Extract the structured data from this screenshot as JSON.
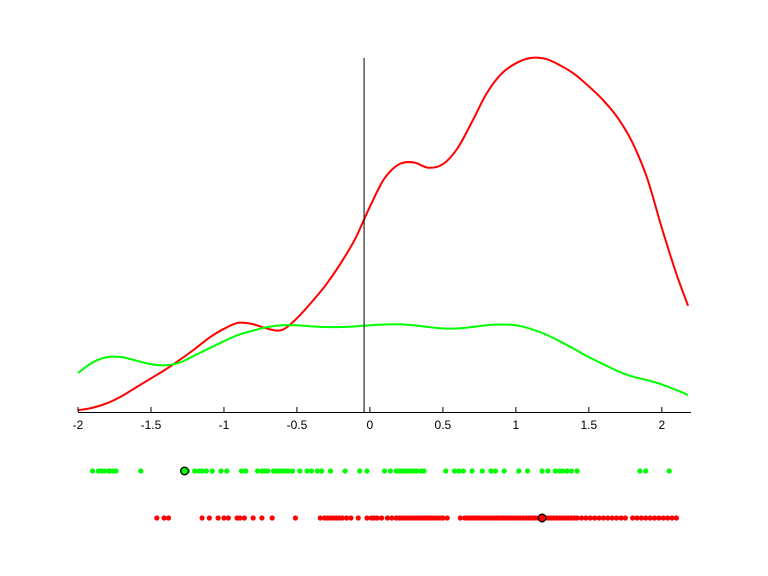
{
  "chart_data": {
    "type": "line",
    "title": "",
    "xlabel": "",
    "ylabel": "",
    "xlim": [
      -2,
      2.2
    ],
    "ylim": [
      0,
      1
    ],
    "xticks": [
      "-2",
      "-1.5",
      "-1",
      "-0.5",
      "0",
      "0.5",
      "1",
      "1.5",
      "2"
    ],
    "grid": false,
    "legend": "none",
    "vertical_line_x": -0.04,
    "series": [
      {
        "color": "#ff0000",
        "x": [
          -2.0,
          -1.9,
          -1.8,
          -1.7,
          -1.6,
          -1.5,
          -1.4,
          -1.3,
          -1.2,
          -1.1,
          -1.0,
          -0.9,
          -0.8,
          -0.7,
          -0.6,
          -0.5,
          -0.4,
          -0.3,
          -0.2,
          -0.1,
          0.0,
          0.1,
          0.2,
          0.3,
          0.4,
          0.5,
          0.6,
          0.7,
          0.8,
          0.9,
          1.0,
          1.1,
          1.2,
          1.3,
          1.4,
          1.5,
          1.6,
          1.7,
          1.8,
          1.9,
          2.0,
          2.1,
          2.18
        ],
        "y": [
          0.005,
          0.012,
          0.025,
          0.045,
          0.07,
          0.095,
          0.12,
          0.148,
          0.178,
          0.21,
          0.235,
          0.252,
          0.248,
          0.235,
          0.232,
          0.265,
          0.31,
          0.36,
          0.42,
          0.49,
          0.58,
          0.66,
          0.7,
          0.705,
          0.69,
          0.7,
          0.745,
          0.82,
          0.9,
          0.955,
          0.985,
          1.0,
          0.998,
          0.98,
          0.955,
          0.92,
          0.88,
          0.83,
          0.76,
          0.66,
          0.52,
          0.39,
          0.3
        ]
      },
      {
        "color": "#00ff00",
        "x": [
          -2.0,
          -1.9,
          -1.8,
          -1.7,
          -1.6,
          -1.5,
          -1.4,
          -1.3,
          -1.2,
          -1.1,
          -1.0,
          -0.9,
          -0.8,
          -0.7,
          -0.6,
          -0.5,
          -0.4,
          -0.3,
          -0.2,
          -0.1,
          0.0,
          0.1,
          0.2,
          0.3,
          0.4,
          0.5,
          0.6,
          0.7,
          0.8,
          0.9,
          1.0,
          1.1,
          1.2,
          1.3,
          1.4,
          1.5,
          1.6,
          1.7,
          1.8,
          1.9,
          2.0,
          2.1,
          2.18
        ],
        "y": [
          0.11,
          0.14,
          0.155,
          0.155,
          0.145,
          0.135,
          0.132,
          0.14,
          0.16,
          0.18,
          0.2,
          0.218,
          0.23,
          0.24,
          0.245,
          0.245,
          0.242,
          0.24,
          0.24,
          0.242,
          0.245,
          0.247,
          0.248,
          0.245,
          0.24,
          0.236,
          0.236,
          0.24,
          0.245,
          0.247,
          0.245,
          0.235,
          0.22,
          0.2,
          0.178,
          0.155,
          0.135,
          0.115,
          0.1,
          0.09,
          0.078,
          0.062,
          0.048
        ]
      }
    ],
    "rug": [
      {
        "color": "#00ff00",
        "highlight": -1.27,
        "points": [
          -1.9,
          -1.86,
          -1.84,
          -1.82,
          -1.79,
          -1.78,
          -1.76,
          -1.74,
          -1.57,
          -1.27,
          -1.25,
          -1.2,
          -1.17,
          -1.15,
          -1.12,
          -1.08,
          -1.02,
          -0.98,
          -0.88,
          -0.85,
          -0.77,
          -0.74,
          -0.72,
          -0.7,
          -0.66,
          -0.64,
          -0.62,
          -0.6,
          -0.58,
          -0.56,
          -0.53,
          -0.48,
          -0.43,
          -0.4,
          -0.36,
          -0.33,
          -0.27,
          -0.17,
          -0.07,
          -0.02,
          0.1,
          0.14,
          0.18,
          0.2,
          0.22,
          0.24,
          0.26,
          0.28,
          0.3,
          0.32,
          0.35,
          0.37,
          0.52,
          0.58,
          0.61,
          0.64,
          0.7,
          0.77,
          0.83,
          0.86,
          0.92,
          1.02,
          1.08,
          1.18,
          1.22,
          1.27,
          1.3,
          1.32,
          1.35,
          1.38,
          1.42,
          1.85,
          1.89,
          2.05
        ]
      },
      {
        "color": "#ff0000",
        "highlight": 1.18,
        "points": [
          -1.46,
          -1.41,
          -1.38,
          -1.15,
          -1.1,
          -1.04,
          -1.0,
          -0.97,
          -0.91,
          -0.89,
          -0.86,
          -0.8,
          -0.74,
          -0.67,
          -0.51,
          -0.34,
          -0.31,
          -0.29,
          -0.27,
          -0.25,
          -0.23,
          -0.21,
          -0.19,
          -0.16,
          -0.13,
          -0.08,
          -0.02,
          0.01,
          0.03,
          0.05,
          0.08,
          0.12,
          0.15,
          0.18,
          0.2,
          0.22,
          0.24,
          0.26,
          0.28,
          0.3,
          0.32,
          0.34,
          0.36,
          0.38,
          0.4,
          0.42,
          0.44,
          0.46,
          0.48,
          0.5,
          0.53,
          0.62,
          0.65,
          0.67,
          0.69,
          0.71,
          0.73,
          0.75,
          0.77,
          0.79,
          0.81,
          0.83,
          0.85,
          0.87,
          0.89,
          0.91,
          0.93,
          0.95,
          0.97,
          0.99,
          1.01,
          1.03,
          1.05,
          1.07,
          1.09,
          1.11,
          1.13,
          1.15,
          1.18,
          1.2,
          1.22,
          1.24,
          1.26,
          1.28,
          1.3,
          1.32,
          1.34,
          1.36,
          1.38,
          1.4,
          1.42,
          1.45,
          1.48,
          1.51,
          1.54,
          1.57,
          1.6,
          1.63,
          1.66,
          1.69,
          1.72,
          1.75,
          1.8,
          1.83,
          1.86,
          1.89,
          1.92,
          1.95,
          1.98,
          2.01,
          2.04,
          2.07,
          2.1
        ]
      }
    ]
  }
}
